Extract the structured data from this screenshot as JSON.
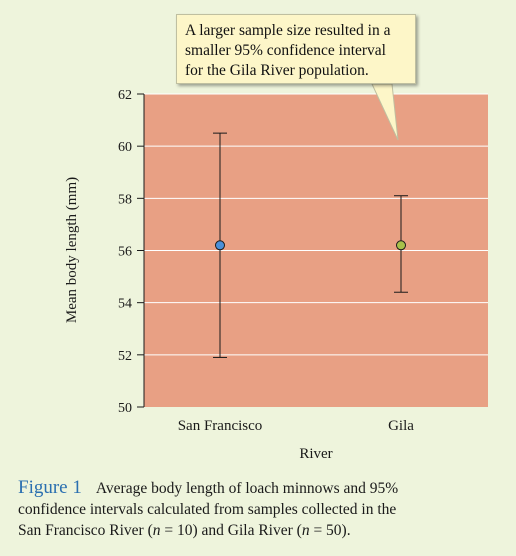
{
  "chart_data": {
    "type": "errorbar",
    "categories": [
      "San Francisco",
      "Gila"
    ],
    "means": [
      56.2,
      56.2
    ],
    "ci_low": [
      51.9,
      54.4
    ],
    "ci_high": [
      60.5,
      58.1
    ],
    "point_colors": [
      "#4a90d9",
      "#a7c04a"
    ],
    "xlabel": "River",
    "ylabel": "Mean body length (mm)",
    "ylim": [
      50,
      62
    ],
    "yticks": [
      50,
      52,
      54,
      56,
      58,
      60,
      62
    ],
    "grid": true,
    "plot_background": "#e8a084"
  },
  "callout": {
    "lines": [
      "A larger sample size resulted in a",
      "smaller 95% confidence interval",
      "for the Gila River population."
    ]
  },
  "caption": {
    "label": "Figure 1",
    "line1": "Average body length of loach minnows and 95%",
    "line2": "confidence intervals calculated from samples collected in the",
    "line3_a": "San Francisco River (",
    "n_symbol": "n",
    "line3_b": " = 10) and Gila River (",
    "line3_c": " = 50)."
  },
  "colors": {
    "page_background": "#eef4dc",
    "callout_background": "#fdf6c8",
    "figure_label": "#2a6fb0"
  }
}
